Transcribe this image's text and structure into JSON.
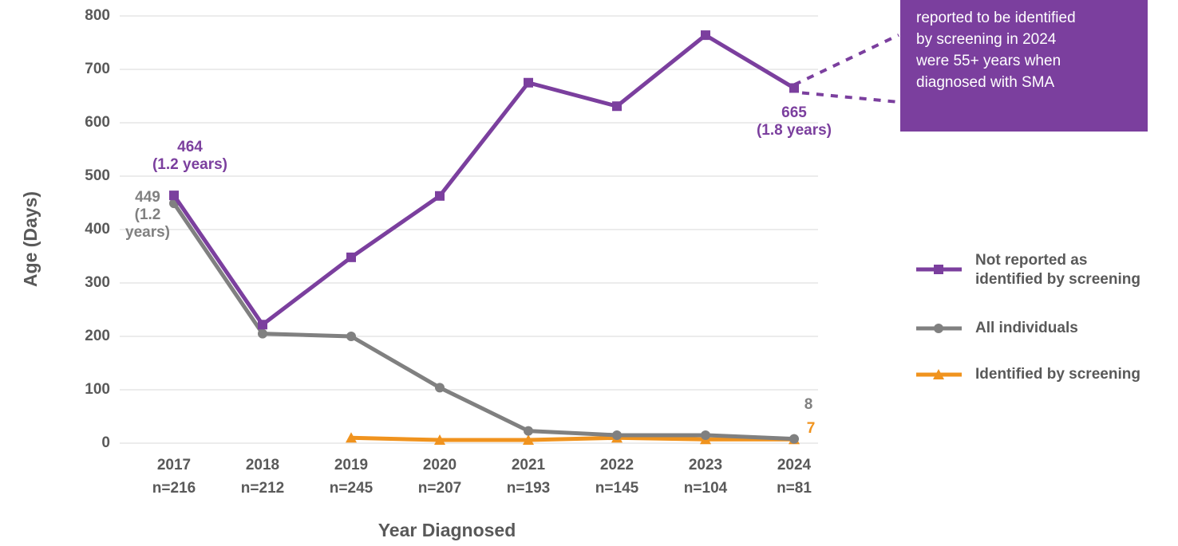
{
  "chart_data": {
    "type": "line",
    "x_label": "Year Diagnosed",
    "y_label": "Age (Days)",
    "categories": [
      "2017\nn=216",
      "2018\nn=212",
      "2019\nn=245",
      "2020\nn=207",
      "2021\nn=193",
      "2022\nn=145",
      "2023\nn=104",
      "2024\nn=81"
    ],
    "series": [
      {
        "name": "Not reported as\nidentified by screening",
        "color": "#7b3f9e",
        "marker": "square",
        "values": [
          464,
          222,
          348,
          463,
          675,
          631,
          764,
          665
        ],
        "value_labels": [
          "464\n(1.2 years)",
          null,
          null,
          null,
          null,
          null,
          null,
          "665\n(1.8 years)"
        ]
      },
      {
        "name": "All individuals",
        "color": "#808080",
        "marker": "circle",
        "values": [
          449,
          205,
          200,
          104,
          23,
          15,
          15,
          8
        ],
        "value_labels": [
          "449\n(1.2\nyears)",
          null,
          null,
          null,
          null,
          null,
          null,
          "8"
        ]
      },
      {
        "name": "Identified by screening",
        "color": "#f0931e",
        "marker": "triangle",
        "values": [
          null,
          null,
          10,
          6,
          6,
          10,
          7,
          7
        ],
        "value_labels": [
          null,
          null,
          null,
          null,
          null,
          null,
          null,
          "7"
        ]
      }
    ],
    "ylim": [
      0,
      800
    ],
    "yticks": [
      0,
      100,
      200,
      300,
      400,
      500,
      600,
      700,
      800
    ],
    "grid": true,
    "legend": "right",
    "annotation": "reported to be identified\nby screening in 2024\nwere 55+ years when\ndiagnosed with SMA",
    "annotation_color": "#7b3f9e"
  }
}
